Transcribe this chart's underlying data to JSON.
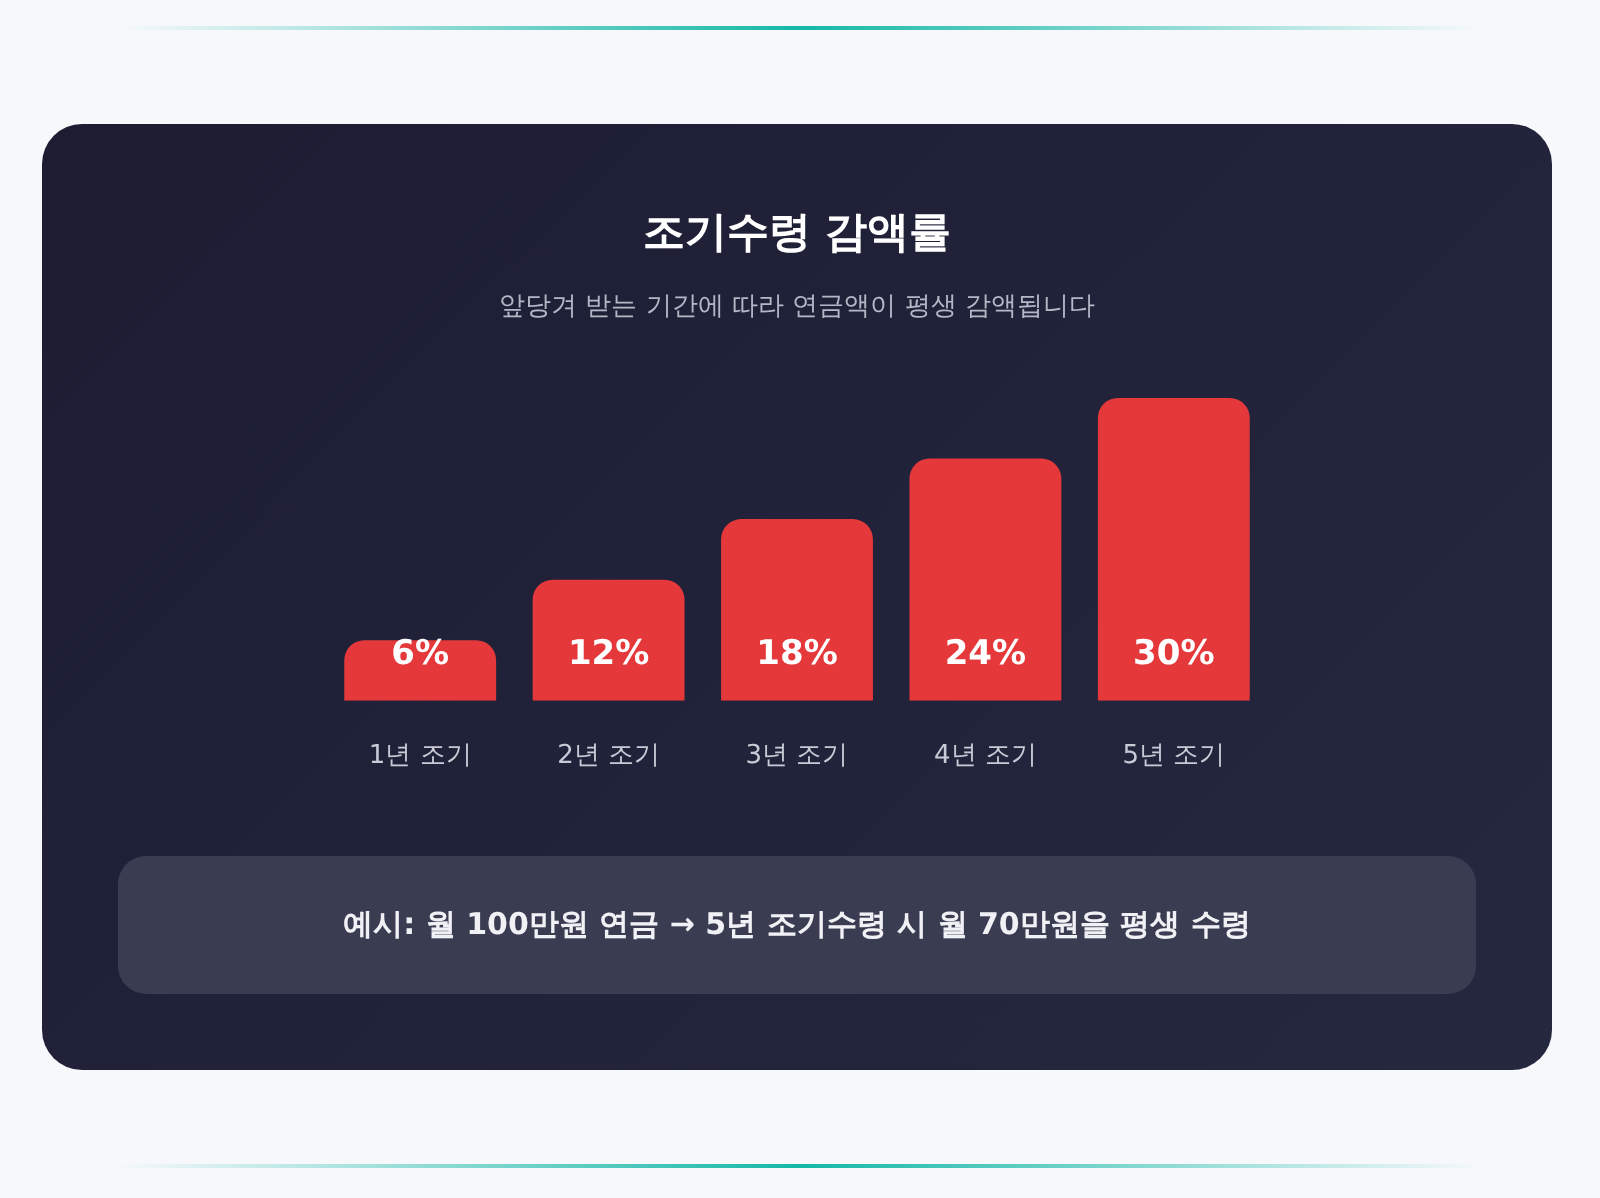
{
  "chart_data": {
    "type": "bar",
    "title": "조기수령 감액률",
    "subtitle": "앞당겨 받는 기간에 따라 연금액이 평생 감액됩니다",
    "categories": [
      "1년 조기",
      "2년 조기",
      "3년 조기",
      "4년 조기",
      "5년 조기"
    ],
    "values": [
      6,
      12,
      18,
      24,
      30
    ],
    "value_labels": [
      "6%",
      "12%",
      "18%",
      "24%",
      "30%"
    ],
    "ylim": [
      0,
      30
    ],
    "tick_labels": "x",
    "color": "#e5383b",
    "annotations": [
      "예시: 월 100만원 연금 → 5년 조기수령 시 월 70만원을 평생 수령"
    ]
  }
}
